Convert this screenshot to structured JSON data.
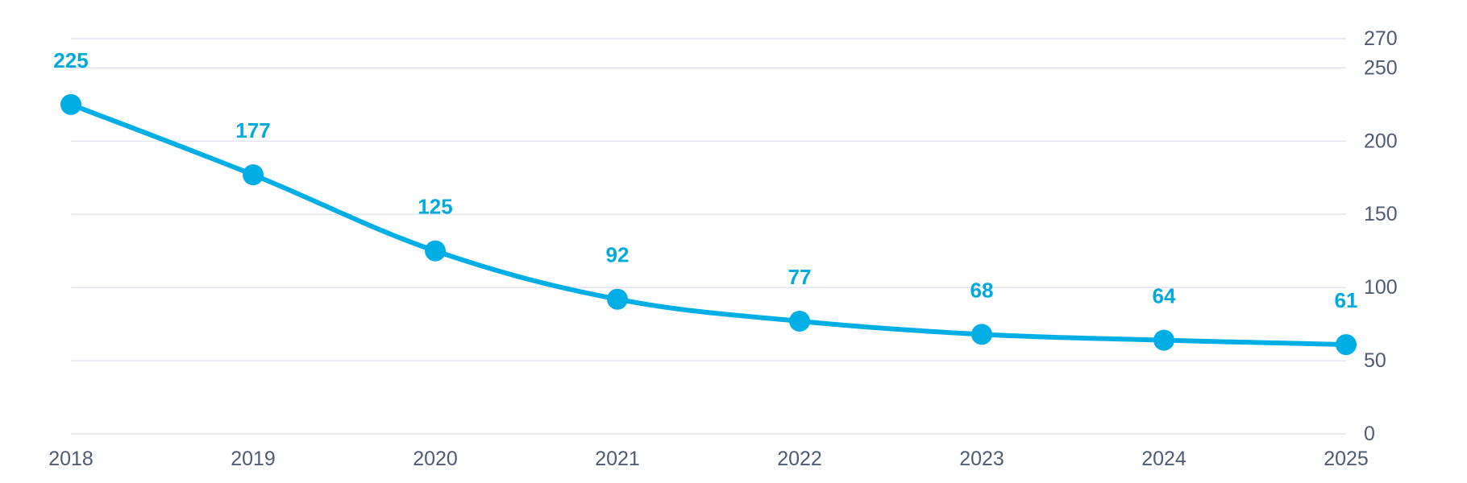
{
  "chart_data": {
    "type": "line",
    "title": "",
    "xlabel": "",
    "ylabel": "",
    "categories": [
      "2018",
      "2019",
      "2020",
      "2021",
      "2022",
      "2023",
      "2024",
      "2025"
    ],
    "series": [
      {
        "values": [
          225,
          177,
          125,
          92,
          77,
          68,
          64,
          61
        ],
        "color": "#00aee6"
      }
    ],
    "ylim": [
      0,
      270
    ],
    "y_ticks": [
      0,
      50,
      100,
      150,
      200,
      250,
      270
    ],
    "y_axis_side": "right",
    "grid": true,
    "data_labels": true,
    "marker": "circle"
  }
}
